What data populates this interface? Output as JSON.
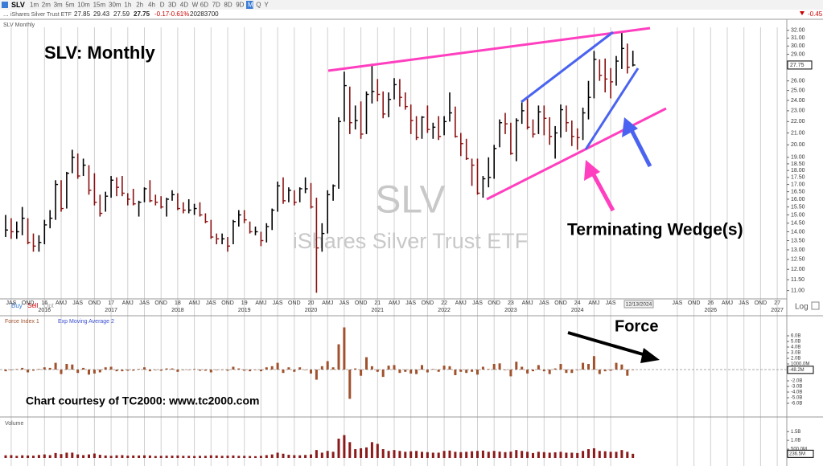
{
  "toolbar": {
    "symbol": "SLV",
    "timeframes": [
      "1m",
      "2m",
      "3m",
      "5m",
      "10m",
      "15m",
      "30m",
      "1h",
      "2h",
      "4h",
      "D",
      "3D",
      "4D",
      "W",
      "6D",
      "7D",
      "8D",
      "9D",
      "M",
      "Q",
      "Y"
    ],
    "active": "M",
    "name": "iShares Silver Trust ETF",
    "open": 27.85,
    "change": -0.17,
    "change_pct": "-0.61%",
    "volume": 20283700,
    "right_change": -0.45
  },
  "chart_data": [
    {
      "type": "ohlc",
      "title": "SLV:  Monthly",
      "pane_label": "SLV Monthly",
      "watermark": "SLV",
      "watermark_name": "iShares Silver Trust ETF",
      "log_scale": true,
      "ylim": [
        10.7,
        32.5
      ],
      "yticks": [
        {
          "value": 32,
          "label": "32.00"
        },
        {
          "value": 31,
          "label": "31.00"
        },
        {
          "value": 30,
          "label": "30.00"
        },
        {
          "value": 29,
          "label": "29.00"
        },
        {
          "value": 26,
          "label": "26.00"
        },
        {
          "value": 25,
          "label": "25.00"
        },
        {
          "value": 24,
          "label": "24.00"
        },
        {
          "value": 23,
          "label": "23.00"
        },
        {
          "value": 22,
          "label": "22.00"
        },
        {
          "value": 21,
          "label": "21.00"
        },
        {
          "value": 20,
          "label": "20.00"
        },
        {
          "value": 19,
          "label": "19.00"
        },
        {
          "value": 18.5,
          "label": "18.50"
        },
        {
          "value": 18,
          "label": "18.00"
        },
        {
          "value": 17.5,
          "label": "17.50"
        },
        {
          "value": 17,
          "label": "17.00"
        },
        {
          "value": 16.5,
          "label": "16.50"
        },
        {
          "value": 16,
          "label": "16.00"
        },
        {
          "value": 15.5,
          "label": "15.50"
        },
        {
          "value": 15,
          "label": "15.00"
        },
        {
          "value": 14.5,
          "label": "14.50"
        },
        {
          "value": 14,
          "label": "14.00"
        },
        {
          "value": 13.5,
          "label": "13.50"
        },
        {
          "value": 13,
          "label": "13.00"
        },
        {
          "value": 12.5,
          "label": "12.50"
        },
        {
          "value": 12,
          "label": "12.00"
        },
        {
          "value": 11.5,
          "label": "11.50"
        },
        {
          "value": 11,
          "label": "11.00"
        }
      ],
      "categories": [
        null,
        "JAS",
        null,
        null,
        "OND",
        null,
        null,
        "16",
        null,
        null,
        "AMJ",
        null,
        null,
        "JAS",
        null,
        null,
        "OND",
        null,
        null,
        "17",
        null,
        null,
        "AMJ",
        null,
        null,
        "JAS",
        null,
        null,
        "OND",
        null,
        null,
        "18",
        null,
        null,
        "AMJ",
        null,
        null,
        "JAS",
        null,
        null,
        "OND",
        null,
        null,
        "19",
        null,
        null,
        "AMJ",
        null,
        null,
        "JAS",
        null,
        null,
        "OND",
        null,
        null,
        "20",
        null,
        null,
        "AMJ",
        null,
        null,
        "JAS",
        null,
        null,
        "OND",
        null,
        null,
        "21",
        null,
        null,
        "AMJ",
        null,
        null,
        "JAS",
        null,
        null,
        "OND",
        null,
        null,
        "22",
        null,
        null,
        "AMJ",
        null,
        null,
        "JAS",
        null,
        null,
        "OND",
        null,
        null,
        "23",
        null,
        null,
        "AMJ",
        null,
        null,
        "JAS",
        null,
        null,
        "OND",
        null,
        null,
        "24",
        null,
        null,
        "AMJ",
        null,
        null,
        "JAS",
        null,
        null,
        null,
        null,
        null,
        null,
        null,
        null,
        null,
        null,
        null,
        "JAS",
        null,
        null,
        "OND",
        null,
        null,
        "26",
        null,
        null,
        "AMJ",
        null,
        null,
        "JAS",
        null,
        null,
        "OND",
        null,
        null,
        "27",
        null
      ],
      "year_labels": [
        null,
        null,
        null,
        null,
        null,
        null,
        null,
        "2016",
        null,
        null,
        null,
        null,
        null,
        null,
        null,
        null,
        null,
        null,
        null,
        "2017",
        null,
        null,
        null,
        null,
        null,
        null,
        null,
        null,
        null,
        null,
        null,
        "2018",
        null,
        null,
        null,
        null,
        null,
        null,
        null,
        null,
        null,
        null,
        null,
        "2019",
        null,
        null,
        null,
        null,
        null,
        null,
        null,
        null,
        null,
        null,
        null,
        "2020",
        null,
        null,
        null,
        null,
        null,
        null,
        null,
        null,
        null,
        null,
        null,
        "2021",
        null,
        null,
        null,
        null,
        null,
        null,
        null,
        null,
        null,
        null,
        null,
        "2022",
        null,
        null,
        null,
        null,
        null,
        null,
        null,
        null,
        null,
        null,
        null,
        "2023",
        null,
        null,
        null,
        null,
        null,
        null,
        null,
        null,
        null,
        null,
        null,
        "2024",
        null,
        null,
        null,
        null,
        null,
        null,
        null,
        null,
        null,
        null,
        null,
        null,
        null,
        null,
        null,
        null,
        null,
        null,
        null,
        null,
        null,
        null,
        null,
        "2026",
        null,
        null,
        null,
        null,
        null,
        null,
        null,
        null,
        null,
        null,
        null,
        "2027",
        null
      ],
      "high": [
        15.0,
        14.8,
        14.6,
        15.5,
        14.8,
        13.9,
        13.8,
        14.7,
        15.3,
        17.3,
        17.3,
        17.9,
        19.6,
        19.3,
        18.9,
        18.4,
        17.8,
        16.3,
        16.5,
        17.6,
        17.5,
        17.6,
        16.4,
        16.7,
        15.9,
        16.8,
        17.3,
        16.3,
        16.2,
        16.1,
        16.6,
        16.4,
        15.8,
        16.0,
        15.7,
        15.8,
        15.1,
        14.7,
        13.9,
        13.9,
        13.7,
        14.7,
        15.3,
        15.3,
        14.6,
        14.3,
        14.0,
        14.5,
        15.4,
        17.2,
        17.5,
        16.8,
        16.6,
        16.8,
        17.5,
        17.1,
        16.1,
        14.5,
        16.6,
        17.0,
        22.4,
        27.0,
        25.4,
        23.5,
        23.9,
        24.9,
        27.9,
        26.2,
        24.9,
        24.8,
        26.3,
        26.2,
        24.8,
        23.6,
        22.5,
        22.5,
        23.5,
        21.9,
        22.5,
        22.5,
        24.8,
        23.4,
        21.0,
        20.5,
        18.9,
        18.9,
        17.6,
        19.0,
        20.0,
        22.2,
        22.8,
        21.9,
        22.3,
        23.8,
        24.2,
        22.2,
        23.5,
        23.5,
        22.4,
        21.6,
        23.6,
        23.5,
        22.1,
        21.4,
        23.3,
        26.0,
        29.4,
        28.4,
        28.5,
        27.4,
        28.8,
        31.8,
        30.3,
        29.43,
        null,
        null,
        null,
        null,
        null,
        null,
        null,
        null,
        null,
        null,
        null,
        null,
        null,
        null,
        null,
        null,
        null,
        null,
        null,
        null,
        null,
        null,
        null,
        null,
        null,
        null,
        null
      ],
      "low": [
        13.7,
        13.6,
        13.6,
        13.8,
        13.3,
        12.9,
        12.9,
        13.3,
        14.2,
        14.7,
        15.2,
        15.4,
        17.8,
        17.4,
        17.6,
        16.3,
        15.6,
        14.9,
        15.2,
        16.1,
        16.2,
        16.2,
        15.6,
        15.6,
        14.9,
        15.8,
        15.8,
        15.6,
        15.4,
        14.9,
        15.9,
        15.3,
        15.1,
        15.1,
        15.0,
        14.9,
        14.5,
        13.6,
        13.3,
        13.3,
        12.9,
        13.3,
        14.3,
        14.5,
        13.9,
        13.8,
        13.2,
        13.4,
        14.1,
        15.2,
        15.7,
        15.8,
        15.6,
        15.8,
        16.4,
        15.4,
        10.9,
        12.9,
        13.9,
        15.9,
        16.7,
        22.0,
        20.9,
        21.3,
        20.5,
        20.9,
        23.7,
        23.9,
        22.3,
        22.4,
        24.1,
        23.4,
        23.1,
        20.9,
        20.4,
        20.5,
        21.0,
        20.5,
        20.4,
        20.8,
        22.0,
        20.6,
        19.1,
        18.8,
        16.9,
        16.3,
        16.1,
        16.8,
        17.4,
        19.8,
        20.9,
        19.2,
        18.7,
        21.8,
        21.3,
        20.6,
        20.9,
        20.8,
        20.0,
        18.9,
        20.6,
        21.1,
        19.9,
        19.6,
        20.4,
        22.2,
        24.2,
        26.0,
        24.8,
        24.2,
        25.5,
        27.3,
        26.8,
        27.59,
        null,
        null,
        null,
        null,
        null,
        null,
        null,
        null,
        null,
        null,
        null,
        null,
        null,
        null,
        null,
        null,
        null,
        null,
        null,
        null,
        null,
        null,
        null,
        null,
        null,
        null,
        null
      ],
      "close": [
        14.1,
        14.0,
        14.0,
        14.8,
        13.4,
        13.2,
        13.4,
        14.4,
        14.8,
        17.0,
        15.4,
        17.8,
        19.0,
        17.6,
        18.4,
        16.6,
        15.8,
        15.1,
        16.2,
        17.3,
        16.8,
        16.4,
        16.0,
        15.7,
        15.8,
        16.7,
        15.9,
        15.8,
        15.5,
        16.0,
        16.3,
        15.4,
        15.3,
        15.3,
        15.4,
        15.0,
        14.6,
        13.7,
        13.6,
        13.6,
        13.2,
        14.6,
        15.0,
        14.7,
        14.0,
        14.0,
        13.5,
        14.3,
        15.3,
        16.9,
        15.9,
        16.6,
        15.8,
        16.7,
        16.7,
        15.5,
        13.1,
        13.9,
        16.3,
        16.9,
        22.0,
        25.5,
        21.9,
        22.1,
        20.9,
        24.6,
        24.9,
        24.6,
        22.7,
        24.1,
        25.6,
        24.3,
        23.4,
        22.1,
        20.6,
        22.4,
        21.3,
        21.5,
        20.7,
        22.0,
        22.8,
        20.7,
        20.1,
        18.9,
        18.4,
        16.4,
        17.4,
        17.5,
        19.7,
        21.9,
        21.8,
        19.3,
        22.1,
        23.0,
        21.5,
        20.9,
        22.9,
        22.3,
        20.7,
        21.0,
        23.1,
        21.9,
        20.7,
        20.6,
        22.8,
        24.3,
        28.4,
        26.6,
        26.2,
        25.9,
        28.2,
        29.7,
        27.5,
        27.75,
        null,
        null,
        null,
        null,
        null,
        null,
        null,
        null,
        null,
        null,
        null,
        null,
        null,
        null,
        null,
        null,
        null,
        null,
        null,
        null,
        null,
        null,
        null,
        null,
        null,
        null,
        null
      ],
      "up_color": "#000000",
      "down_color": "#8b1010",
      "date_label": "12/13/2024",
      "scale_label": "Log",
      "trade_buttons": [
        "Buy",
        "Sell",
        "Opt"
      ],
      "annotations": [
        "Terminating Wedge(s)",
        "Force",
        "Chart courtesy of TC2000:  www.tc2000.com"
      ]
    },
    {
      "type": "bar",
      "title": "Force Index 1",
      "overlay_label": "Exp Moving Average 2",
      "color": "#a0522d",
      "ylim": [
        -7,
        8
      ],
      "yticks": [
        {
          "value": 6,
          "label": "6.0B"
        },
        {
          "value": 5,
          "label": "5.0B"
        },
        {
          "value": 4,
          "label": "4.0B"
        },
        {
          "value": 3,
          "label": "3.0B"
        },
        {
          "value": 2,
          "label": "2.0B"
        },
        {
          "value": 1,
          "label": "1000.0M"
        },
        {
          "value": -2,
          "label": "-2.0B"
        },
        {
          "value": -3,
          "label": "-3.0B"
        },
        {
          "value": -4,
          "label": "-4.0B"
        },
        {
          "value": -5,
          "label": "-5.0B"
        },
        {
          "value": -6,
          "label": "-6.0B"
        }
      ],
      "values": [
        -0.3,
        -0.1,
        0.1,
        0.3,
        -0.5,
        -0.2,
        0.1,
        0.4,
        0.3,
        1.2,
        -0.8,
        1.0,
        0.9,
        -0.6,
        0.3,
        -0.9,
        -0.7,
        -0.5,
        0.4,
        0.5,
        -0.3,
        -0.3,
        -0.2,
        -0.2,
        0.1,
        0.4,
        -0.3,
        -0.1,
        -0.2,
        0.2,
        0.2,
        -0.4,
        -0.1,
        0.0,
        0.1,
        -0.2,
        -0.2,
        -0.5,
        -0.1,
        0.0,
        -0.2,
        0.5,
        0.2,
        -0.2,
        -0.3,
        0.0,
        -0.3,
        0.4,
        0.6,
        1.2,
        -0.6,
        0.4,
        -0.4,
        0.4,
        0.0,
        -0.7,
        -1.8,
        0.6,
        1.5,
        0.4,
        4.5,
        7.5,
        -5.2,
        0.2,
        -1.1,
        2.2,
        0.6,
        -0.4,
        -1.3,
        0.7,
        0.8,
        -0.6,
        -0.4,
        -0.7,
        -0.8,
        0.8,
        -0.5,
        0.1,
        -0.4,
        0.7,
        0.6,
        -1.0,
        -0.4,
        -0.6,
        -0.4,
        -0.9,
        0.5,
        0.1,
        1.0,
        1.1,
        -0.1,
        -1.2,
        1.4,
        0.5,
        -0.7,
        -0.3,
        0.8,
        -0.3,
        -0.8,
        0.2,
        1.0,
        -0.6,
        -0.6,
        -0.1,
        1.2,
        1.0,
        2.4,
        -0.8,
        -0.3,
        -0.2,
        1.2,
        0.9,
        -1.1,
        -0.0482,
        null,
        null,
        null,
        null,
        null,
        null,
        null,
        null,
        null,
        null,
        null,
        null,
        null,
        null,
        null,
        null,
        null,
        null,
        null,
        null,
        null,
        null,
        null,
        null,
        null,
        null,
        null
      ],
      "last_label": "-48.2M"
    },
    {
      "type": "bar",
      "title": "Volume",
      "color": "#8b1a1a",
      "ylim": [
        0,
        1.6
      ],
      "yticks": [
        {
          "value": 1.5,
          "label": "1.5B"
        },
        {
          "value": 1,
          "label": "1.0B"
        },
        {
          "value": 0.5,
          "label": "500.0M"
        }
      ],
      "values": [
        0.15,
        0.16,
        0.12,
        0.15,
        0.14,
        0.13,
        0.17,
        0.2,
        0.16,
        0.28,
        0.22,
        0.3,
        0.3,
        0.2,
        0.16,
        0.2,
        0.25,
        0.18,
        0.14,
        0.12,
        0.15,
        0.16,
        0.13,
        0.14,
        0.14,
        0.15,
        0.14,
        0.11,
        0.12,
        0.13,
        0.13,
        0.14,
        0.12,
        0.12,
        0.11,
        0.12,
        0.12,
        0.15,
        0.14,
        0.12,
        0.13,
        0.14,
        0.12,
        0.12,
        0.11,
        0.1,
        0.12,
        0.16,
        0.2,
        0.3,
        0.24,
        0.18,
        0.16,
        0.15,
        0.17,
        0.2,
        0.45,
        0.3,
        0.4,
        0.35,
        1.1,
        1.3,
        0.9,
        0.5,
        0.55,
        0.6,
        0.9,
        0.8,
        0.5,
        0.4,
        0.45,
        0.4,
        0.35,
        0.38,
        0.4,
        0.35,
        0.33,
        0.3,
        0.3,
        0.4,
        0.42,
        0.35,
        0.33,
        0.35,
        0.38,
        0.4,
        0.42,
        0.35,
        0.4,
        0.36,
        0.33,
        0.36,
        0.45,
        0.4,
        0.35,
        0.28,
        0.35,
        0.33,
        0.3,
        0.32,
        0.35,
        0.3,
        0.3,
        0.28,
        0.4,
        0.5,
        0.55,
        0.4,
        0.38,
        0.35,
        0.35,
        0.45,
        0.35,
        0.2365,
        null,
        null,
        null,
        null,
        null,
        null,
        null,
        null,
        null,
        null,
        null,
        null,
        null,
        null,
        null,
        null,
        null,
        null,
        null,
        null,
        null,
        null,
        null,
        null,
        null,
        null,
        null
      ],
      "last_label": "236.5M"
    }
  ]
}
